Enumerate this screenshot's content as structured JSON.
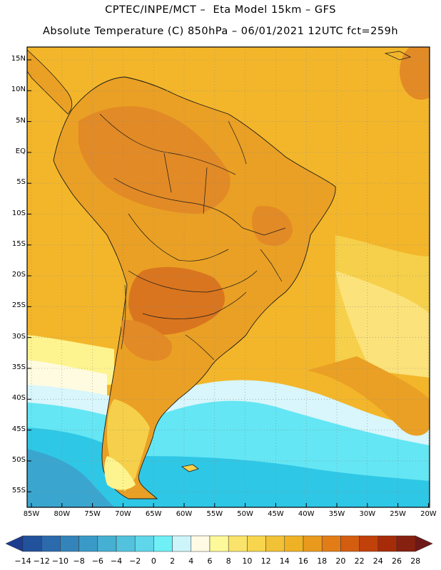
{
  "header": {
    "line1": "CPTEC/INPE/MCT –  Eta Model 15km – GFS",
    "line2": "Absolute Temperature (C) 850hPa – 06/01/2021 12UTC fct=259h"
  },
  "map": {
    "lat_labels": [
      "15N",
      "10N",
      "5N",
      "EQ",
      "5S",
      "10S",
      "15S",
      "20S",
      "25S",
      "30S",
      "35S",
      "40S",
      "45S",
      "50S",
      "55S"
    ],
    "lon_labels": [
      "85W",
      "80W",
      "75W",
      "70W",
      "65W",
      "60W",
      "55W",
      "50W",
      "45W",
      "40W",
      "35W",
      "30W",
      "25W",
      "20W"
    ],
    "colors": {
      "ocean_warm": "#f3b62a",
      "land_warm": "#eaa024",
      "hot": "#e28a26",
      "very_hot": "#d9751f",
      "mid": "#f6d04a",
      "pale": "#fef48f",
      "cream": "#fffbe0",
      "ice": "#d8f6fb",
      "cyan": "#64e6f4",
      "teal": "#2fc7e6",
      "blue": "#3aa6cf"
    }
  },
  "colorbar": {
    "labels": [
      "−14",
      "−12",
      "−10",
      "−8",
      "−6",
      "−4",
      "−2",
      "0",
      "2",
      "4",
      "6",
      "8",
      "10",
      "12",
      "14",
      "16",
      "18",
      "20",
      "22",
      "24",
      "26",
      "28"
    ],
    "colors": [
      "#1b3c8f",
      "#22529c",
      "#2b6aac",
      "#3384bb",
      "#3a9ac7",
      "#46b0d2",
      "#53c3dd",
      "#5fd6e9",
      "#6ef0f6",
      "#cdf4fb",
      "#fffae3",
      "#fdf89a",
      "#fae36a",
      "#f7d64d",
      "#f1c236",
      "#efb224",
      "#e99a1d",
      "#e27c16",
      "#d45d10",
      "#c1410a",
      "#a62b08",
      "#862010",
      "#6e1818"
    ]
  }
}
